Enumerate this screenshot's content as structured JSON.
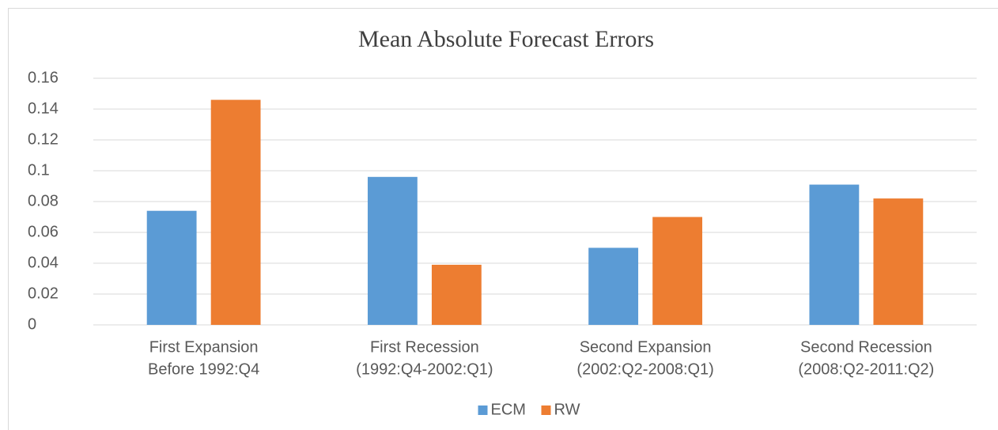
{
  "chart_data": {
    "type": "bar",
    "title": "Mean Absolute Forecast Errors",
    "categories": [
      [
        "First Expansion",
        "Before 1992:Q4"
      ],
      [
        "First Recession",
        "(1992:Q4-2002:Q1)"
      ],
      [
        "Second Expansion",
        "(2002:Q2-2008:Q1)"
      ],
      [
        "Second Recession",
        "(2008:Q2-2011:Q2)"
      ]
    ],
    "series": [
      {
        "name": "ECM",
        "color": "#5b9bd5",
        "values": [
          0.074,
          0.096,
          0.05,
          0.091
        ]
      },
      {
        "name": "RW",
        "color": "#ed7d31",
        "values": [
          0.146,
          0.039,
          0.07,
          0.082
        ]
      }
    ],
    "ylim": [
      0,
      0.16
    ],
    "yticks": [
      0,
      0.02,
      0.04,
      0.06,
      0.08,
      0.1,
      0.12,
      0.14,
      0.16
    ],
    "grid": true,
    "legend": "bottom"
  }
}
